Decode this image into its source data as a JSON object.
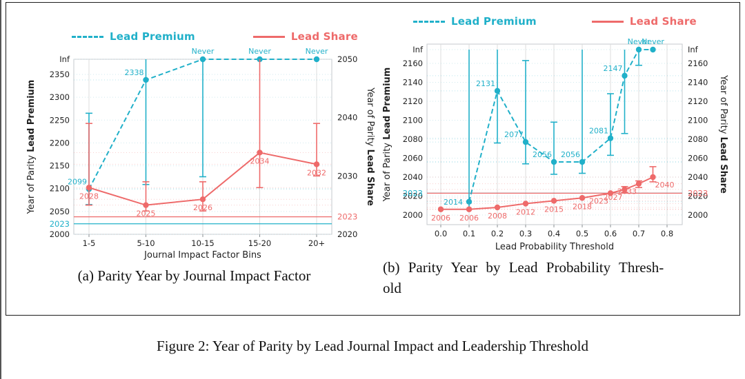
{
  "figure": {
    "caption": "Figure 2: Year of Parity by Lead Journal Impact and Leadership Threshold",
    "subcaption_a": "(a) Parity Year by Journal Impact Factor",
    "subcaption_b_line1": "(b) Parity Year by Lead Probability Thresh-",
    "subcaption_b_line2": "old"
  },
  "legend": {
    "premium": "Lead Premium",
    "share": "Lead Share"
  },
  "colors": {
    "premium": "#20b0c9",
    "share": "#ee6a6a",
    "text": "#1f1f1f",
    "grid_v": "#dcdcdc",
    "grid_dot": "#c4e4eb",
    "spine": "#c6cacc"
  },
  "chart_data": [
    {
      "id": "a",
      "type": "line",
      "title": "Parity Year by Journal Impact Factor",
      "xlabel": "Journal Impact Factor Bins",
      "x_mode": "categorical",
      "categories": [
        "1-5",
        "5-10",
        "10-15",
        "15-20",
        "20+"
      ],
      "axes": {
        "left": {
          "label": "Year of Parity",
          "label_bold": "Lead Premium",
          "range": [
            2000,
            2350
          ],
          "ticks": [
            {
              "v": 2000
            },
            {
              "v": 2023,
              "series": "premium"
            },
            {
              "v": 2050
            },
            {
              "v": 2100
            },
            {
              "v": 2150
            },
            {
              "v": 2200
            },
            {
              "v": 2250
            },
            {
              "v": 2300
            },
            {
              "v": 2350
            },
            {
              "v": "Inf"
            }
          ]
        },
        "right": {
          "label": "Year of Parity",
          "label_bold": "Lead Share",
          "range": [
            2020,
            2050
          ],
          "ticks": [
            {
              "v": 2020
            },
            {
              "v": 2023,
              "series": "share"
            },
            {
              "v": 2030
            },
            {
              "v": 2040
            },
            {
              "v": 2050
            }
          ]
        }
      },
      "reference_lines": [
        {
          "axis": "left",
          "value": 2023,
          "series": "premium"
        },
        {
          "axis": "right",
          "value": 2023,
          "series": "share"
        }
      ],
      "series": [
        {
          "key": "premium",
          "name": "Lead Premium",
          "axis": "left",
          "line": "dashed",
          "points": [
            {
              "x": "1-5",
              "value": 2099,
              "label": "2099",
              "label_side": "above-left",
              "err": [
                2065,
                2265
              ]
            },
            {
              "x": "5-10",
              "value": 2338,
              "label": "2338",
              "label_side": "above-left",
              "err": [
                2109,
                "Inf"
              ]
            },
            {
              "x": "10-15",
              "value": "Inf",
              "label": "Never",
              "label_side": "above",
              "err": [
                2126,
                "Inf"
              ]
            },
            {
              "x": "15-20",
              "value": "Inf",
              "label": "Never",
              "label_side": "above",
              "err": null
            },
            {
              "x": "20+",
              "value": "Inf",
              "label": "Never",
              "label_side": "above",
              "err": null
            }
          ]
        },
        {
          "key": "share",
          "name": "Lead Share",
          "axis": "right",
          "line": "solid",
          "points": [
            {
              "x": "1-5",
              "value": 2028,
              "label": "2028",
              "label_side": "below",
              "err": [
                2025,
                2039
              ]
            },
            {
              "x": "5-10",
              "value": 2025,
              "label": "2025",
              "label_side": "below",
              "err": [
                2024,
                2029
              ]
            },
            {
              "x": "10-15",
              "value": 2026,
              "label": "2026",
              "label_side": "below",
              "err": [
                2024,
                2029
              ]
            },
            {
              "x": "15-20",
              "value": 2034,
              "label": "2034",
              "label_side": "below",
              "err": [
                2028,
                "Inf"
              ]
            },
            {
              "x": "20+",
              "value": 2032,
              "label": "2032",
              "label_side": "below",
              "err": [
                2030,
                2039
              ]
            }
          ]
        }
      ]
    },
    {
      "id": "b",
      "type": "line",
      "title": "Parity Year by Lead Probability Threshold",
      "xlabel": "Lead Probability Threshold",
      "x_mode": "linear",
      "x_range": [
        0.0,
        0.8
      ],
      "x_ticks": [
        {
          "v": 0.0,
          "label": "0.0"
        },
        {
          "v": 0.1,
          "label": "0.1"
        },
        {
          "v": 0.2,
          "label": "0.2"
        },
        {
          "v": 0.3,
          "label": "0.3"
        },
        {
          "v": 0.4,
          "label": "0.4"
        },
        {
          "v": 0.5,
          "label": "0.5"
        },
        {
          "v": 0.6,
          "label": "0.6"
        },
        {
          "v": 0.7,
          "label": "0.7"
        },
        {
          "v": 0.8,
          "label": "0.8"
        }
      ],
      "axes": {
        "left": {
          "label": "Year of Parity",
          "label_bold": "Lead Premium",
          "range": [
            2000,
            2160
          ],
          "ticks": [
            {
              "v": 2000
            },
            {
              "v": 2020
            },
            {
              "v": 2023,
              "series": "premium"
            },
            {
              "v": 2040
            },
            {
              "v": 2060
            },
            {
              "v": 2080
            },
            {
              "v": 2100
            },
            {
              "v": 2120
            },
            {
              "v": 2140
            },
            {
              "v": 2160
            },
            {
              "v": "Inf"
            }
          ]
        },
        "right": {
          "label": "Year of Parity",
          "label_bold": "Lead Share",
          "range": [
            2000,
            2160
          ],
          "ticks": [
            {
              "v": 2000
            },
            {
              "v": 2020
            },
            {
              "v": 2023,
              "series": "share"
            },
            {
              "v": 2040
            },
            {
              "v": 2060
            },
            {
              "v": 2080
            },
            {
              "v": 2100
            },
            {
              "v": 2120
            },
            {
              "v": 2140
            },
            {
              "v": 2160
            },
            {
              "v": "Inf"
            }
          ]
        }
      },
      "reference_lines": [
        {
          "axis": "left",
          "value": 2023,
          "series": "premium"
        },
        {
          "axis": "right",
          "value": 2023,
          "series": "share"
        }
      ],
      "series": [
        {
          "key": "premium",
          "name": "Lead Premium",
          "axis": "left",
          "line": "dashed",
          "points": [
            {
              "x": 0.1,
              "value": 2014,
              "label": "2014",
              "label_side": "left",
              "err": [
                2006,
                "Inf"
              ]
            },
            {
              "x": 0.2,
              "value": 2131,
              "label": "2131",
              "label_side": "above-left",
              "err": [
                2076,
                "Inf"
              ]
            },
            {
              "x": 0.3,
              "value": 2077,
              "label": "2077",
              "label_side": "above-left",
              "err": [
                2054,
                2163
              ]
            },
            {
              "x": 0.4,
              "value": 2056,
              "label": "2056",
              "label_side": "above-left",
              "err": [
                2043,
                2098
              ]
            },
            {
              "x": 0.5,
              "value": 2056,
              "label": "2056",
              "label_side": "above-left",
              "err": [
                2044,
                "Inf"
              ]
            },
            {
              "x": 0.6,
              "value": 2081,
              "label": "2081",
              "label_side": "above-left",
              "err": [
                2063,
                2128
              ]
            },
            {
              "x": 0.65,
              "value": 2147,
              "label": "2147",
              "label_side": "above-left",
              "err": [
                2086,
                "Inf"
              ]
            },
            {
              "x": 0.7,
              "value": "Inf",
              "label": "Never",
              "label_side": "above",
              "err": [
                2158,
                "Inf"
              ]
            },
            {
              "x": 0.75,
              "value": "Inf",
              "label": "Never",
              "label_side": "above",
              "err": null
            }
          ]
        },
        {
          "key": "share",
          "name": "Lead Share",
          "axis": "right",
          "line": "solid",
          "points": [
            {
              "x": 0.0,
              "value": 2006,
              "label": "2006",
              "label_side": "below",
              "err": null
            },
            {
              "x": 0.1,
              "value": 2006,
              "label": "2006",
              "label_side": "below",
              "err": null
            },
            {
              "x": 0.2,
              "value": 2008,
              "label": "2008",
              "label_side": "below",
              "err": null
            },
            {
              "x": 0.3,
              "value": 2012,
              "label": "2012",
              "label_side": "below",
              "err": null
            },
            {
              "x": 0.4,
              "value": 2015,
              "label": "2015",
              "label_side": "below",
              "err": null
            },
            {
              "x": 0.5,
              "value": 2018,
              "label": "2018",
              "label_side": "below",
              "err": null
            },
            {
              "x": 0.6,
              "value": 2023,
              "label": "2023",
              "label_side": "below-left",
              "err": null
            },
            {
              "x": 0.65,
              "value": 2027,
              "label": "2027",
              "label_side": "below-left",
              "err": [
                2024,
                2030
              ]
            },
            {
              "x": 0.7,
              "value": 2033,
              "label": "2033",
              "label_side": "below-left",
              "err": [
                2029,
                2036
              ]
            },
            {
              "x": 0.75,
              "value": 2040,
              "label": "2040",
              "label_side": "below-right",
              "err": [
                2035,
                2051
              ]
            }
          ]
        }
      ]
    }
  ]
}
